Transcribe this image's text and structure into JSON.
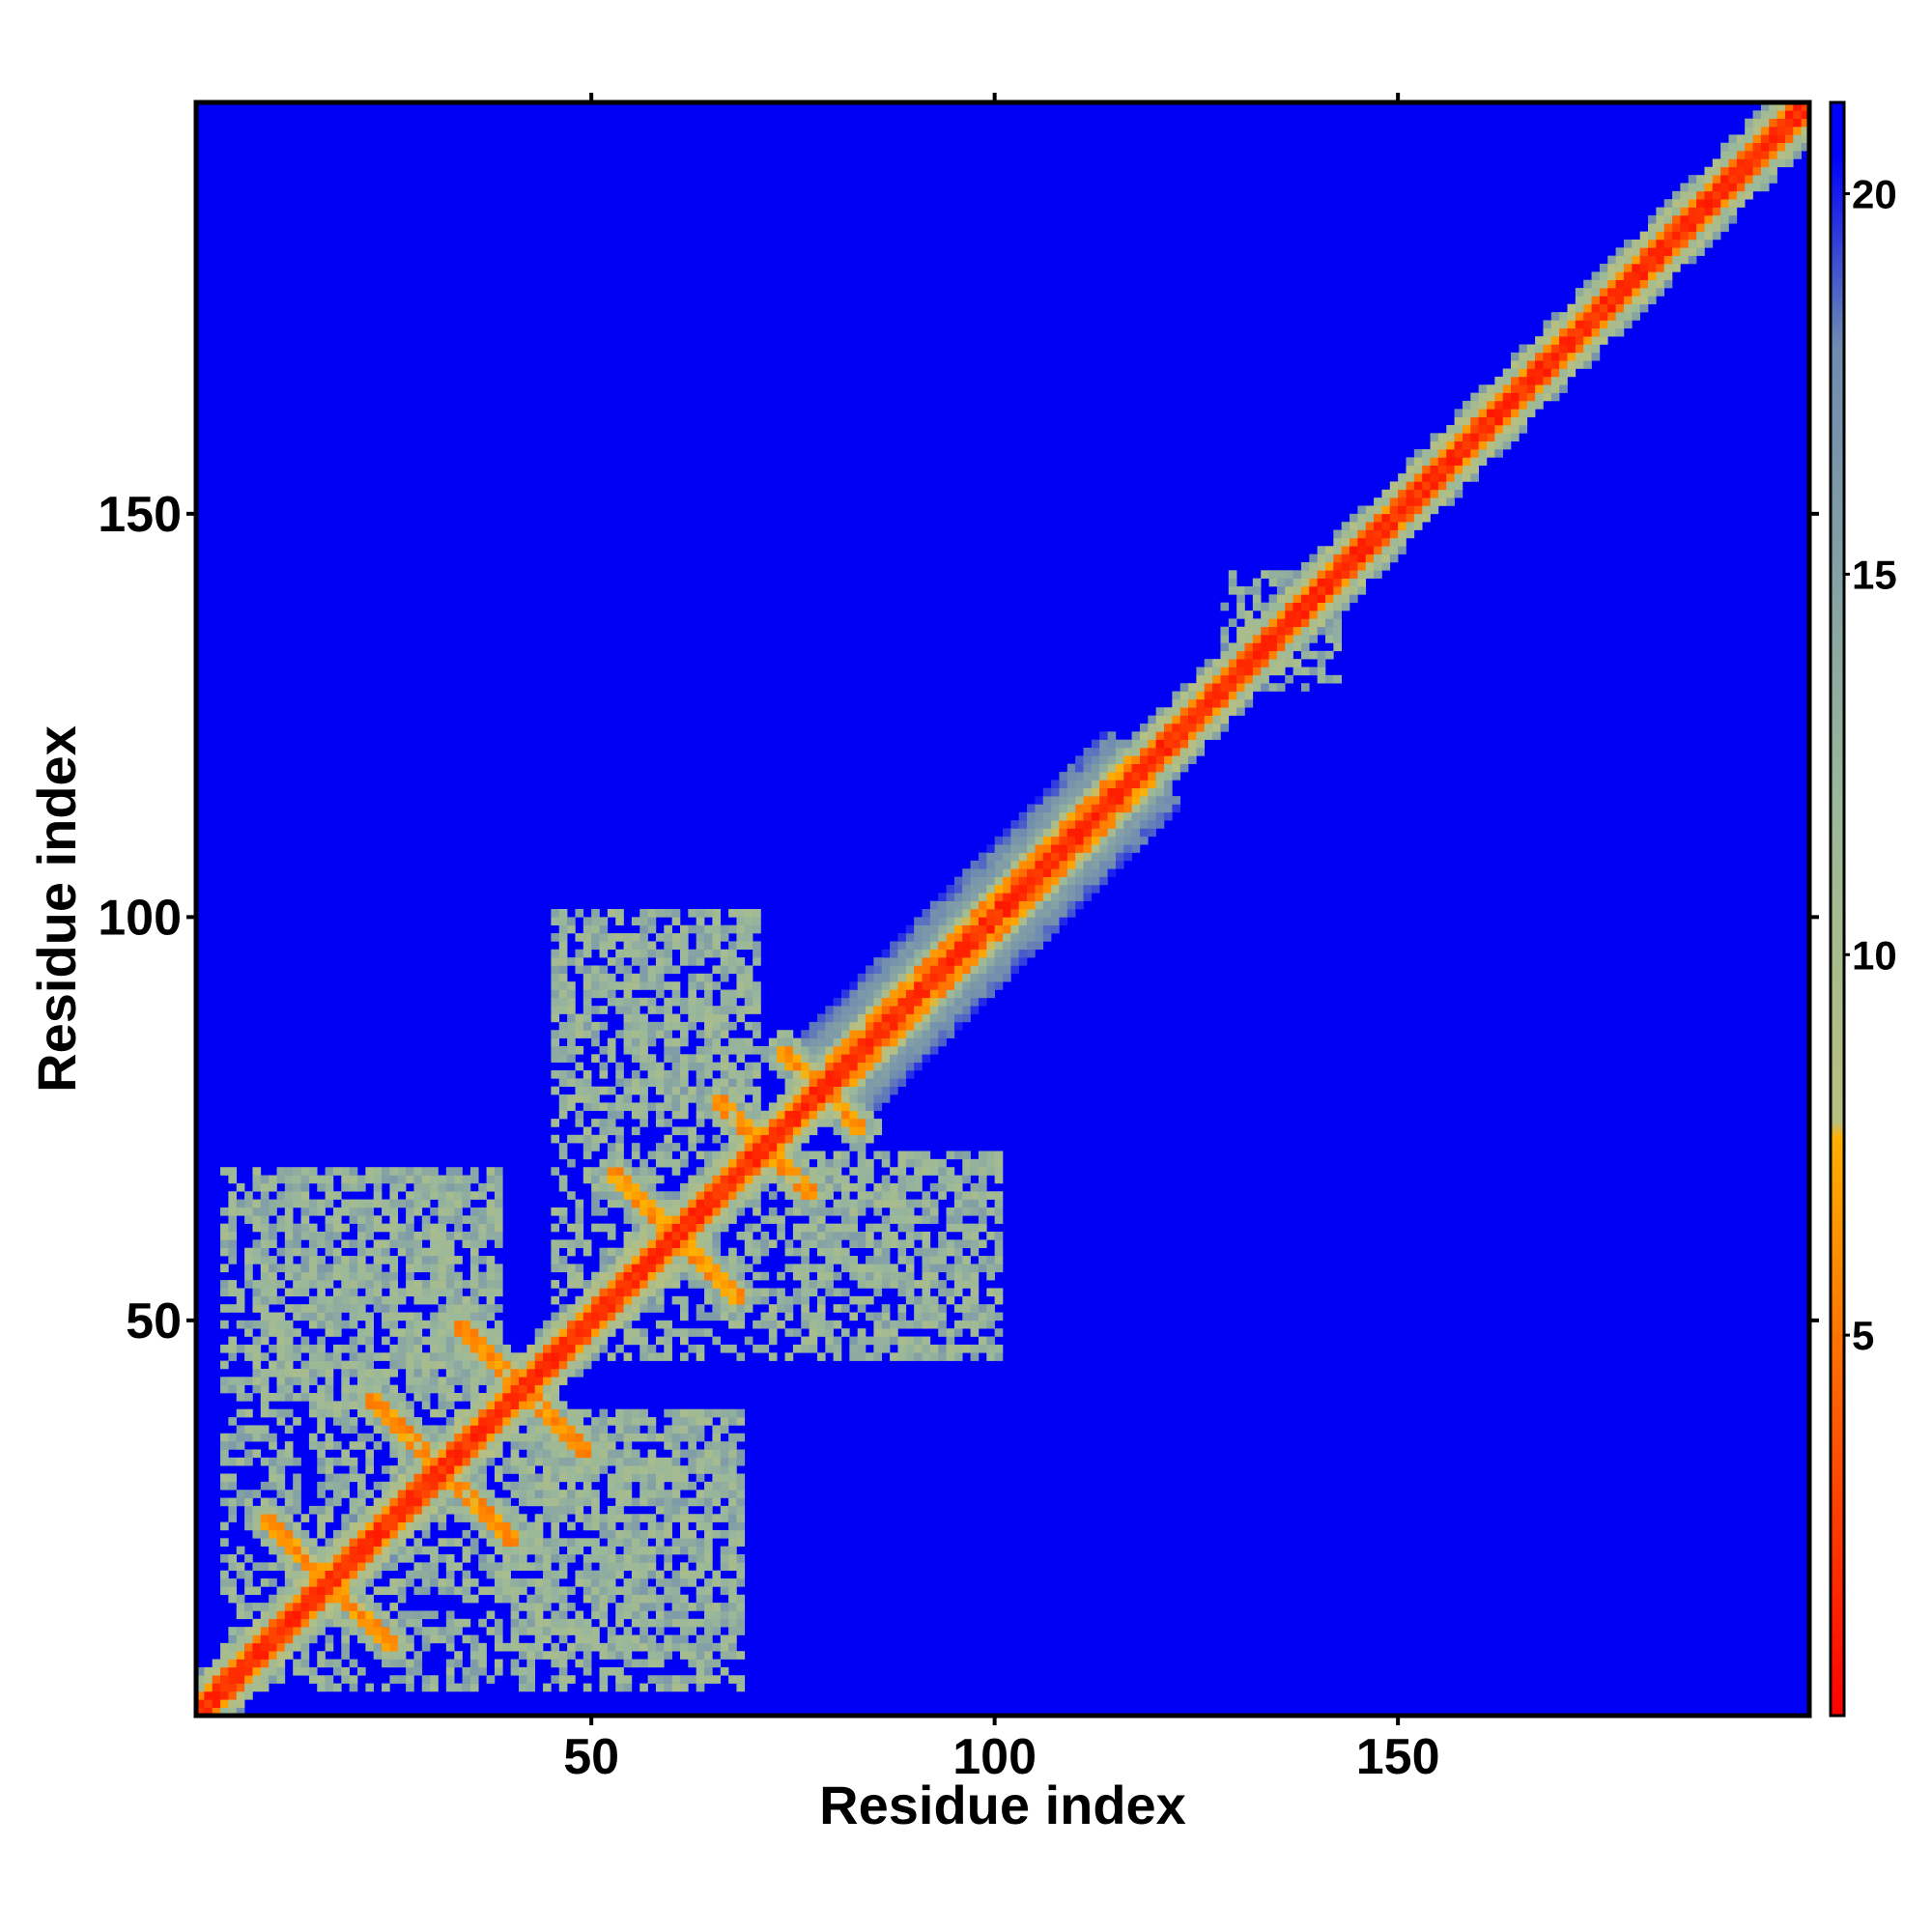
{
  "chart_data": {
    "type": "heatmap",
    "title": "",
    "xlabel": "Residue index",
    "ylabel": "Residue index",
    "xlim": [
      1,
      201
    ],
    "ylim": [
      1,
      201
    ],
    "x_ticks": [
      50,
      100,
      150
    ],
    "y_ticks": [
      50,
      100,
      150
    ],
    "colorbar": {
      "range": [
        0,
        21.2
      ],
      "ticks": [
        5,
        10,
        15,
        20
      ],
      "colors": [
        {
          "value": 0,
          "color": "#ff0000"
        },
        {
          "value": 6,
          "color": "#ff8c00"
        },
        {
          "value": 7.6,
          "color": "#ffb000"
        },
        {
          "value": 7.8,
          "color": "#b8c080"
        },
        {
          "value": 12,
          "color": "#9ab89a"
        },
        {
          "value": 18,
          "color": "#6f8bb0"
        },
        {
          "value": 20.5,
          "color": "#0000ff"
        }
      ]
    },
    "background_color": "#0000f5",
    "description_matrix": "symmetric distance/contact map; values shown as colors",
    "features": {
      "diagonal_band": {
        "from": 1,
        "to": 201
      },
      "wide_band": {
        "from": 80,
        "to": 118,
        "half_width": 9
      },
      "cross_contacts": [
        {
          "center": [
            17,
            17
          ],
          "half_len": 8
        },
        {
          "center": [
            30,
            32
          ],
          "half_len": 8
        },
        {
          "center": [
            40,
            42
          ],
          "half_len": 7
        },
        {
          "center": [
            60,
            60
          ],
          "half_len": 8
        },
        {
          "center": [
            71,
            71
          ],
          "half_len": 6
        },
        {
          "center": [
            78,
            78
          ],
          "half_len": 5
        }
      ],
      "scattered_regions": [
        {
          "x": [
            8,
            38
          ],
          "y": [
            4,
            68
          ],
          "density": 0.55
        },
        {
          "x": [
            40,
            68
          ],
          "y": [
            4,
            38
          ],
          "density": 0.5
        },
        {
          "x": [
            45,
            70
          ],
          "y": [
            48,
            100
          ],
          "density": 0.45
        },
        {
          "x": [
            75,
            100
          ],
          "y": [
            45,
            70
          ],
          "density": 0.45
        },
        {
          "x": [
            130,
            142
          ],
          "y": [
            128,
            140
          ],
          "density": 0.4
        }
      ]
    }
  }
}
